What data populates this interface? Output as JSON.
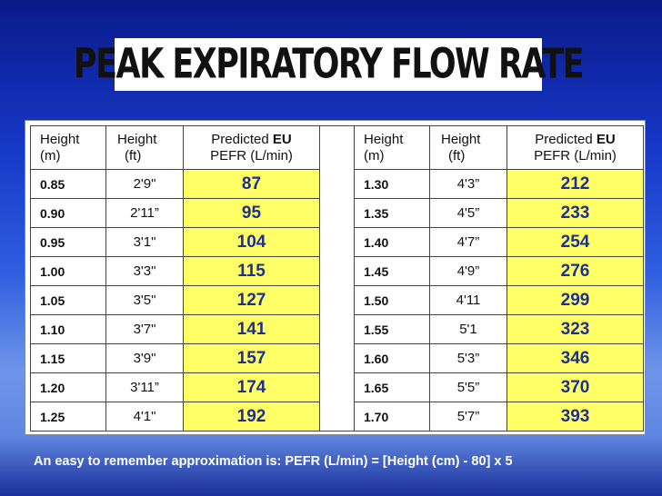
{
  "title": "PEAK EXPIRATORY FLOW RATE",
  "headers": {
    "height": "Height",
    "m": "(m)",
    "ft": "(ft)",
    "predicted": "Predicted ",
    "eu": "EU",
    "pefr": "PEFR (L/min)"
  },
  "left_rows": [
    {
      "m": "0.85",
      "ft": "2'9\"",
      "pefr": "87"
    },
    {
      "m": "0.90",
      "ft": "2'11”",
      "pefr": "95"
    },
    {
      "m": "0.95",
      "ft": "3'1\"",
      "pefr": "104"
    },
    {
      "m": "1.00",
      "ft": "3'3\"",
      "pefr": "115"
    },
    {
      "m": "1.05",
      "ft": "3'5\"",
      "pefr": "127"
    },
    {
      "m": "1.10",
      "ft": "3'7\"",
      "pefr": "141"
    },
    {
      "m": "1.15",
      "ft": "3'9\"",
      "pefr": "157"
    },
    {
      "m": "1.20",
      "ft": "3'11”",
      "pefr": "174"
    },
    {
      "m": "1.25",
      "ft": "4'1\"",
      "pefr": "192"
    }
  ],
  "right_rows": [
    {
      "m": "1.30",
      "ft": "4'3”",
      "pefr": "212"
    },
    {
      "m": "1.35",
      "ft": "4'5”",
      "pefr": "233"
    },
    {
      "m": "1.40",
      "ft": "4'7”",
      "pefr": "254"
    },
    {
      "m": "1.45",
      "ft": "4'9”",
      "pefr": "276"
    },
    {
      "m": "1.50",
      "ft": "4'11",
      "pefr": "299"
    },
    {
      "m": "1.55",
      "ft": "5'1",
      "pefr": "323"
    },
    {
      "m": "1.60",
      "ft": "5'3”",
      "pefr": "346"
    },
    {
      "m": "1.65",
      "ft": "5'5”",
      "pefr": "370"
    },
    {
      "m": "1.70",
      "ft": "5'7”",
      "pefr": "393"
    }
  ],
  "footer": "An easy to remember approximation is: PEFR (L/min) = [Height (cm) - 80] x 5"
}
